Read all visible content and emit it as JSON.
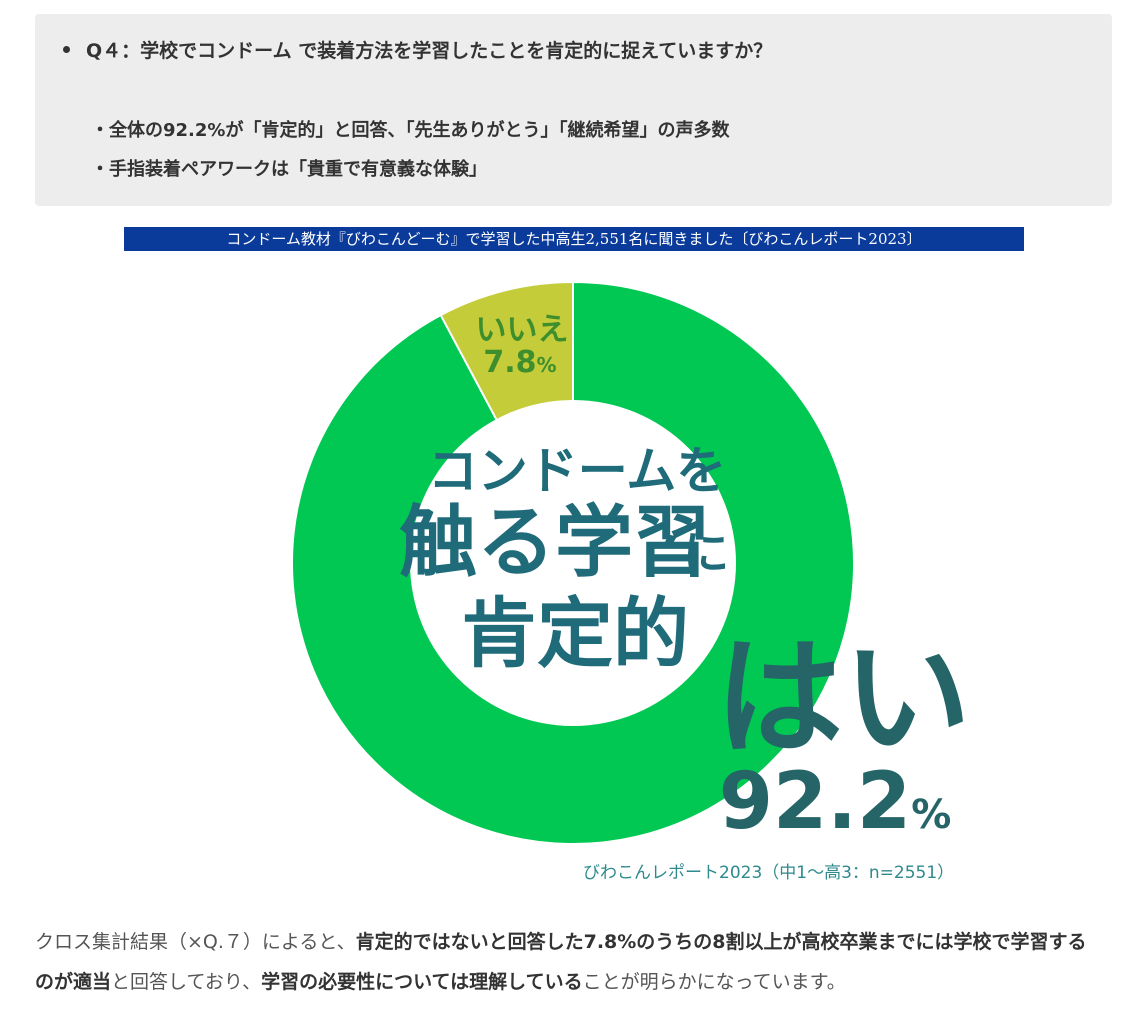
{
  "summary": {
    "question": "Q４：学校でコンドーム で装着方法を学習したことを肯定的に捉えていますか？",
    "points": [
      "・全体の92.2%が「肯定的」と回答、「先生ありがとう」「継続希望」の声多数",
      "・手指装着ペアワークは「貴重で有意義な体験」"
    ]
  },
  "banner": "コンドーム教材『びわこんどーむ』で学習した中高生2,551名に聞きました〔びわこんレポート2023〕",
  "chart_data": {
    "type": "pie",
    "donut": true,
    "slices": [
      {
        "label": "はい",
        "value": 92.2,
        "display": "92.2",
        "unit": "%",
        "color": "#00c853"
      },
      {
        "label": "いいえ",
        "value": 7.8,
        "display": "7.8",
        "unit": "%",
        "color": "#c5cc3a"
      }
    ],
    "center_text": [
      "コンドームを",
      "触る学習",
      "に",
      "肯定的"
    ],
    "label_colors": {
      "yes": "#256567",
      "no": "#3e8e2d",
      "center": "#1f6b7a"
    }
  },
  "source": "びわこんレポート2023（中1～高3：n=2551）",
  "conclusion": {
    "parts": [
      {
        "text": "クロス集計結果（×Q.７）によると、",
        "bold": false
      },
      {
        "text": "肯定的ではないと回答した7.8%のうちの8割以上が高校卒業までには学校で学習するのが適当",
        "bold": true
      },
      {
        "text": "と回答しており、",
        "bold": false
      },
      {
        "text": "学習の必要性については理解している",
        "bold": true
      },
      {
        "text": "ことが明らかになっています。",
        "bold": false
      }
    ]
  }
}
